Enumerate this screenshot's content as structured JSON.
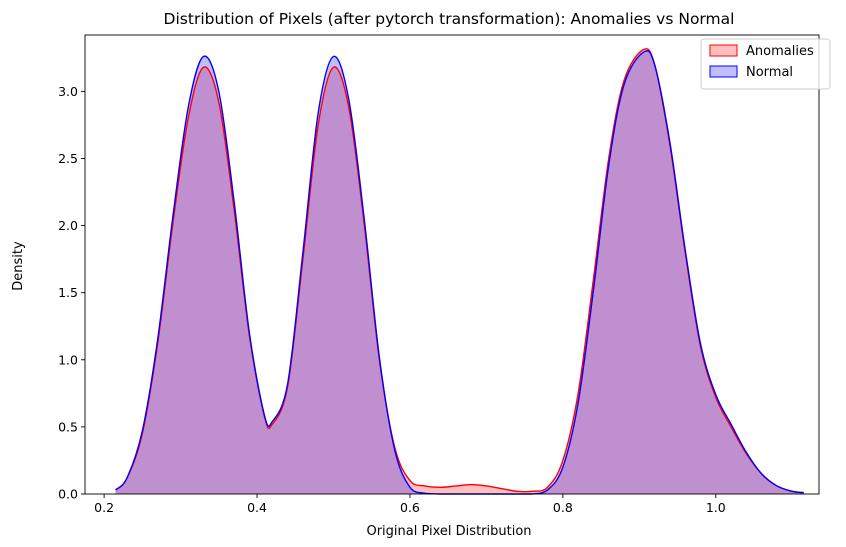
{
  "chart_data": {
    "type": "area",
    "title": "Distribution of Pixels (after pytorch transformation): Anomalies vs Normal",
    "xlabel": "Original Pixel Distribution",
    "ylabel": "Density",
    "xlim": [
      0.175,
      1.135
    ],
    "ylim": [
      0,
      3.42
    ],
    "xticks": [
      0.2,
      0.4,
      0.6,
      0.8,
      1.0
    ],
    "xtick_labels": [
      "0.2",
      "0.4",
      "0.6",
      "0.8",
      "1.0"
    ],
    "yticks": [
      0.0,
      0.5,
      1.0,
      1.5,
      2.0,
      2.5,
      3.0
    ],
    "ytick_labels": [
      "0.0",
      "0.5",
      "1.0",
      "1.5",
      "2.0",
      "2.5",
      "3.0"
    ],
    "grid": false,
    "legend_position": "top-right",
    "series": [
      {
        "name": "Anomalies",
        "line_color": "#ff0000",
        "fill_color": "#ff0000",
        "fill_opacity": 0.25,
        "x": [
          0.215,
          0.23,
          0.25,
          0.27,
          0.29,
          0.31,
          0.33,
          0.35,
          0.37,
          0.39,
          0.41,
          0.42,
          0.44,
          0.46,
          0.48,
          0.5,
          0.52,
          0.54,
          0.56,
          0.58,
          0.6,
          0.62,
          0.64,
          0.66,
          0.68,
          0.7,
          0.72,
          0.74,
          0.76,
          0.78,
          0.8,
          0.82,
          0.84,
          0.86,
          0.88,
          0.905,
          0.92,
          0.94,
          0.96,
          0.98,
          1.0,
          1.02,
          1.04,
          1.06,
          1.08,
          1.1,
          1.115
        ],
        "y": [
          0.03,
          0.12,
          0.45,
          1.12,
          2.02,
          2.8,
          3.18,
          2.92,
          2.12,
          1.18,
          0.57,
          0.52,
          0.8,
          1.75,
          2.75,
          3.18,
          2.88,
          2.02,
          1.0,
          0.35,
          0.1,
          0.06,
          0.05,
          0.06,
          0.07,
          0.06,
          0.04,
          0.02,
          0.02,
          0.05,
          0.25,
          0.75,
          1.6,
          2.5,
          3.08,
          3.31,
          3.2,
          2.6,
          1.8,
          1.1,
          0.72,
          0.5,
          0.3,
          0.15,
          0.06,
          0.02,
          0.01
        ]
      },
      {
        "name": "Normal",
        "line_color": "#0000ff",
        "fill_color": "#0000ff",
        "fill_opacity": 0.25,
        "x": [
          0.215,
          0.23,
          0.25,
          0.27,
          0.29,
          0.31,
          0.33,
          0.35,
          0.37,
          0.39,
          0.41,
          0.42,
          0.44,
          0.46,
          0.48,
          0.5,
          0.52,
          0.54,
          0.56,
          0.58,
          0.6,
          0.62,
          0.64,
          0.66,
          0.68,
          0.7,
          0.72,
          0.74,
          0.76,
          0.78,
          0.8,
          0.82,
          0.84,
          0.86,
          0.88,
          0.905,
          0.92,
          0.94,
          0.96,
          0.98,
          1.0,
          1.02,
          1.04,
          1.06,
          1.08,
          1.1,
          1.115
        ],
        "y": [
          0.03,
          0.12,
          0.47,
          1.15,
          2.07,
          2.88,
          3.26,
          3.0,
          2.18,
          1.2,
          0.58,
          0.54,
          0.82,
          1.8,
          2.84,
          3.26,
          2.94,
          2.06,
          1.02,
          0.33,
          0.05,
          0.005,
          0.0,
          0.0,
          0.0,
          0.0,
          0.0,
          0.0,
          0.0,
          0.03,
          0.2,
          0.68,
          1.52,
          2.45,
          3.05,
          3.29,
          3.2,
          2.62,
          1.82,
          1.12,
          0.74,
          0.52,
          0.31,
          0.15,
          0.06,
          0.02,
          0.01
        ]
      }
    ]
  }
}
